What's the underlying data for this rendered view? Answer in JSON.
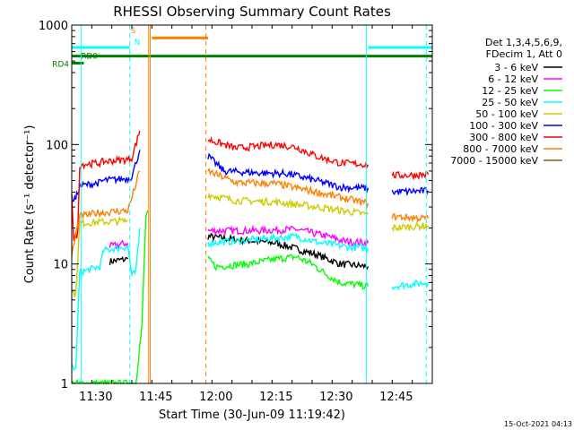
{
  "chart_data": {
    "type": "line",
    "title": "RHESSI Observing Summary Count Rates",
    "xlabel": "Start Time (30-Jun-09 11:19:42)",
    "ylabel": "Count Rate (s⁻¹ detector⁻¹)",
    "yscale": "log",
    "ylim": [
      1,
      1000
    ],
    "xlim": [
      "11:24",
      "12:54"
    ],
    "x_ticks": [
      "11:30",
      "11:45",
      "12:00",
      "12:15",
      "12:30",
      "12:45"
    ],
    "y_ticks": [
      "1",
      "10",
      "100",
      "1000"
    ],
    "legend_title": [
      "Det 1,3,4,5,6,9,",
      "FDecim 1, Att 0"
    ],
    "legend_placement": "top-right, outside plot",
    "footer": "15-Oct-2021 04:13",
    "data_gap": [
      "11:43",
      "11:58"
    ],
    "series": [
      {
        "name": "3 - 6 keV",
        "color": "#000000",
        "segments": [
          [
            [
              "11:33.5",
              10.5
            ],
            [
              "11:38",
              11
            ]
          ],
          [
            [
              "11:58",
              17
            ],
            [
              "12:05",
              16
            ],
            [
              "12:15",
              15
            ],
            [
              "12:25",
              12
            ],
            [
              "12:31",
              10
            ],
            [
              "12:38",
              9.5
            ]
          ]
        ]
      },
      {
        "name": "6 - 12 keV",
        "color": "#ff00ff",
        "segments": [
          [
            [
              "11:33.5",
              14
            ],
            [
              "11:38",
              15
            ]
          ],
          [
            [
              "11:58",
              19
            ],
            [
              "12:10",
              19
            ],
            [
              "12:20",
              19.5
            ],
            [
              "12:28",
              17
            ],
            [
              "12:32",
              15.5
            ],
            [
              "12:38",
              15
            ]
          ]
        ]
      },
      {
        "name": "12 - 25 keV",
        "color": "#00ff00",
        "segments": [
          [
            [
              "11:24",
              1
            ],
            [
              "11:40",
              1
            ],
            [
              "11:41.5",
              3
            ],
            [
              "11:42.5",
              25
            ],
            [
              "11:43",
              28
            ]
          ],
          [
            [
              "11:58",
              11
            ],
            [
              "12:00",
              9.5
            ],
            [
              "12:08",
              10
            ],
            [
              "12:15",
              11
            ],
            [
              "12:20",
              11.5
            ],
            [
              "12:24",
              10
            ],
            [
              "12:28",
              8
            ],
            [
              "12:31",
              7
            ],
            [
              "12:38",
              6.5
            ]
          ]
        ]
      },
      {
        "name": "25 - 50 keV",
        "color": "#00ffff",
        "segments": [
          [
            [
              "11:24",
              1.4
            ],
            [
              "11:25",
              1.3
            ],
            [
              "11:26",
              8.5
            ],
            [
              "11:31",
              9.5
            ],
            [
              "11:32",
              13
            ],
            [
              "11:38",
              14
            ],
            [
              "11:39",
              8
            ],
            [
              "11:40",
              8.5
            ],
            [
              "11:41",
              20
            ]
          ],
          [
            [
              "11:58",
              15
            ],
            [
              "12:10",
              16
            ],
            [
              "12:20",
              17
            ],
            [
              "12:26",
              15
            ],
            [
              "12:32",
              14
            ],
            [
              "12:38",
              13.5
            ]
          ],
          [
            [
              "12:44",
              6.5
            ],
            [
              "12:53",
              7
            ]
          ]
        ]
      },
      {
        "name": "50 - 100 keV",
        "color": "#cccc00",
        "segments": [
          [
            [
              "11:24",
              6
            ],
            [
              "11:25",
              5.5
            ],
            [
              "11:26",
              22
            ],
            [
              "11:38",
              23
            ]
          ],
          [
            [
              "11:58",
              38
            ],
            [
              "12:05",
              34
            ],
            [
              "12:15",
              33
            ],
            [
              "12:25",
              30
            ],
            [
              "12:38",
              26
            ]
          ],
          [
            [
              "12:44",
              20
            ],
            [
              "12:53",
              21
            ]
          ]
        ]
      },
      {
        "name": "100 - 300 keV",
        "color": "#0000ff",
        "segments": [
          [
            [
              "11:24",
              35
            ],
            [
              "11:25",
              35
            ],
            [
              "11:26",
              45
            ],
            [
              "11:31",
              48
            ],
            [
              "11:32",
              50
            ],
            [
              "11:38",
              52
            ],
            [
              "11:39",
              54
            ],
            [
              "11:41",
              90
            ]
          ],
          [
            [
              "11:58",
              80
            ],
            [
              "12:02",
              60
            ],
            [
              "12:10",
              58
            ],
            [
              "12:18",
              57
            ],
            [
              "12:25",
              50
            ],
            [
              "12:31",
              44
            ],
            [
              "12:38",
              43
            ]
          ],
          [
            [
              "12:44",
              40
            ],
            [
              "12:53",
              41
            ]
          ]
        ]
      },
      {
        "name": "300 - 800 keV",
        "color": "#ff0000",
        "segments": [
          [
            [
              "11:24",
              40
            ],
            [
              "11:24.5",
              16
            ],
            [
              "11:25.5",
              18
            ],
            [
              "11:26",
              68
            ],
            [
              "11:31",
              70
            ],
            [
              "11:32",
              72
            ],
            [
              "11:38",
              75
            ],
            [
              "11:39",
              78
            ],
            [
              "11:41",
              130
            ]
          ],
          [
            [
              "11:58",
              110
            ],
            [
              "12:05",
              93
            ],
            [
              "12:15",
              100
            ],
            [
              "12:20",
              95
            ],
            [
              "12:25",
              80
            ],
            [
              "12:31",
              70
            ],
            [
              "12:38",
              68
            ]
          ],
          [
            [
              "12:44",
              55
            ],
            [
              "12:53",
              56
            ]
          ]
        ]
      },
      {
        "name": "800 - 7000 keV",
        "color": "#ff8000",
        "segments": [
          [
            [
              "11:24",
              12
            ],
            [
              "11:26",
              25
            ],
            [
              "11:31",
              27
            ],
            [
              "11:32",
              27
            ],
            [
              "11:38",
              28
            ],
            [
              "11:41",
              60
            ]
          ],
          [
            [
              "11:58",
              60
            ],
            [
              "12:05",
              48
            ],
            [
              "12:15",
              47
            ],
            [
              "12:25",
              40
            ],
            [
              "12:38",
              32
            ]
          ],
          [
            [
              "12:44",
              25
            ],
            [
              "12:53",
              24
            ]
          ]
        ]
      },
      {
        "name": "7000 - 15000 keV",
        "color": "#806000",
        "segments": []
      }
    ],
    "flags": [
      {
        "label": "RD4",
        "color": "#008000",
        "from": "11:24",
        "to": "11:27",
        "level": 480
      },
      {
        "label": "RD0",
        "color": "#008000",
        "from": "11:24",
        "to": "12:54",
        "level": 550
      },
      {
        "label": "",
        "color": "#00ffff",
        "from": "11:24",
        "to": "11:38.5",
        "level": 650
      },
      {
        "label": "",
        "color": "#00ffff",
        "from": "12:38",
        "to": "12:54",
        "level": 650
      },
      {
        "label": "",
        "color": "#ff8000",
        "from": "11:44",
        "to": "11:58",
        "level": 780
      }
    ],
    "markers": [
      {
        "label": "S",
        "color": "#ff8000",
        "at": "11:40",
        "level": 900
      },
      {
        "label": "N",
        "color": "#00ffff",
        "at": "11:41",
        "level": 720
      }
    ],
    "vertical_lines": [
      {
        "at": "11:26.3",
        "color": "#00ffff",
        "style": "solid"
      },
      {
        "at": "11:38.5",
        "color": "#00ffff",
        "style": "dashed"
      },
      {
        "at": "11:43.2",
        "color": "#ff8000",
        "style": "solid"
      },
      {
        "at": "11:43.6",
        "color": "#ff8000",
        "style": "solid"
      },
      {
        "at": "11:57.5",
        "color": "#ff8000",
        "style": "dashed"
      },
      {
        "at": "12:37.5",
        "color": "#00ffff",
        "style": "solid"
      },
      {
        "at": "12:52.5",
        "color": "#00ffff",
        "style": "dashed"
      }
    ]
  }
}
